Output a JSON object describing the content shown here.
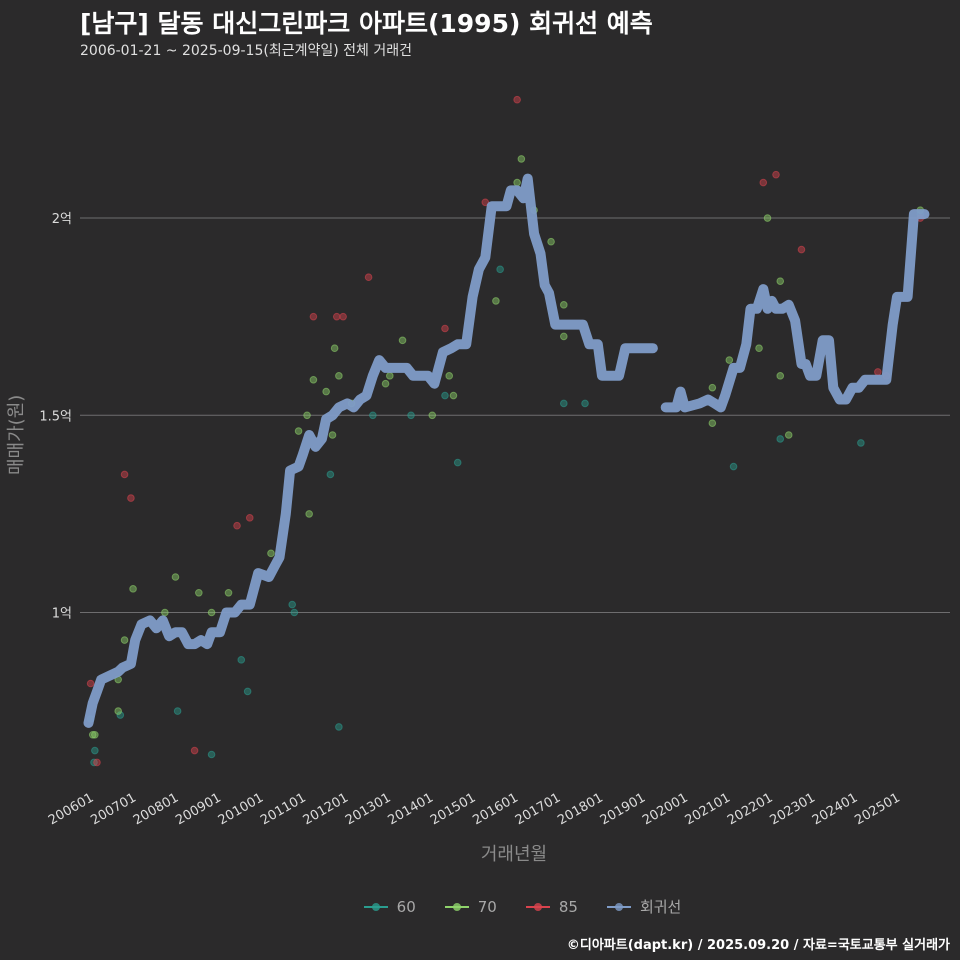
{
  "chart_data": {
    "type": "scatter+line",
    "title": "[남구] 달동 대신그린파크 아파트(1995) 회귀선 예측",
    "subtitle": "2006-01-21 ~ 2025-09-15(최근계약일) 전체 거래건",
    "xlabel": "거래년월",
    "ylabel": "매매가(원)",
    "caption": "©디아파트(dapt.kr) / 2025.09.20 / 자료=국토교통부 실거래가",
    "x_ticks": [
      "200601",
      "200701",
      "200801",
      "200901",
      "201001",
      "201101",
      "201201",
      "201301",
      "201401",
      "201501",
      "201601",
      "201701",
      "201801",
      "201901",
      "202001",
      "202101",
      "202201",
      "202301",
      "202401",
      "202501"
    ],
    "y_ticks": [
      {
        "value": 1.0,
        "label": "1억"
      },
      {
        "value": 1.5,
        "label": "1.5억"
      },
      {
        "value": 2.0,
        "label": "2억"
      }
    ],
    "x_range": [
      2005.8,
      2026.3
    ],
    "y_range": [
      0.55,
      2.35
    ],
    "legend": [
      {
        "name": "60",
        "color": "#2a9d8f"
      },
      {
        "name": "70",
        "color": "#8fd36b"
      },
      {
        "name": "85",
        "color": "#d9434e"
      },
      {
        "name": "회귀선",
        "color": "#7f9cc8"
      }
    ],
    "series": [
      {
        "name": "60",
        "color": "#2a9d8f",
        "points": [
          [
            2006.05,
            0.73
          ],
          [
            2006.15,
            0.65
          ],
          [
            2006.13,
            0.62
          ],
          [
            2006.75,
            0.74
          ],
          [
            2008.1,
            0.75
          ],
          [
            2008.9,
            0.64
          ],
          [
            2009.6,
            0.88
          ],
          [
            2009.75,
            0.8
          ],
          [
            2010.8,
            1.02
          ],
          [
            2010.85,
            1.0
          ],
          [
            2011.7,
            1.35
          ],
          [
            2011.9,
            0.71
          ],
          [
            2012.7,
            1.5
          ],
          [
            2013.6,
            1.5
          ],
          [
            2014.4,
            1.55
          ],
          [
            2014.7,
            1.38
          ],
          [
            2015.7,
            1.87
          ],
          [
            2017.2,
            1.53
          ],
          [
            2017.7,
            1.53
          ],
          [
            2021.2,
            1.37
          ],
          [
            2022.3,
            1.44
          ],
          [
            2024.2,
            1.43
          ],
          [
            2025.6,
            2.01
          ]
        ]
      },
      {
        "name": "70",
        "color": "#8fd36b",
        "points": [
          [
            2006.1,
            0.69
          ],
          [
            2006.15,
            0.69
          ],
          [
            2006.7,
            0.75
          ],
          [
            2006.7,
            0.83
          ],
          [
            2006.85,
            0.93
          ],
          [
            2007.05,
            1.06
          ],
          [
            2007.8,
            1.0
          ],
          [
            2008.05,
            1.09
          ],
          [
            2008.6,
            1.05
          ],
          [
            2008.9,
            1.0
          ],
          [
            2009.3,
            1.05
          ],
          [
            2010.3,
            1.15
          ],
          [
            2010.95,
            1.46
          ],
          [
            2011.15,
            1.5
          ],
          [
            2011.2,
            1.25
          ],
          [
            2011.3,
            1.59
          ],
          [
            2011.6,
            1.56
          ],
          [
            2011.75,
            1.45
          ],
          [
            2011.8,
            1.67
          ],
          [
            2011.9,
            1.6
          ],
          [
            2012.2,
            1.53
          ],
          [
            2013.0,
            1.58
          ],
          [
            2013.1,
            1.6
          ],
          [
            2013.4,
            1.69
          ],
          [
            2014.1,
            1.5
          ],
          [
            2014.5,
            1.6
          ],
          [
            2014.6,
            1.55
          ],
          [
            2015.6,
            1.79
          ],
          [
            2016.1,
            2.09
          ],
          [
            2016.2,
            2.15
          ],
          [
            2016.5,
            2.02
          ],
          [
            2016.9,
            1.94
          ],
          [
            2017.2,
            1.78
          ],
          [
            2017.2,
            1.7
          ],
          [
            2020.7,
            1.48
          ],
          [
            2020.7,
            1.57
          ],
          [
            2021.1,
            1.64
          ],
          [
            2021.8,
            1.67
          ],
          [
            2022.0,
            2.0
          ],
          [
            2022.3,
            1.84
          ],
          [
            2022.3,
            1.6
          ],
          [
            2022.5,
            1.45
          ],
          [
            2025.6,
            2.02
          ]
        ]
      },
      {
        "name": "85",
        "color": "#d9434e",
        "points": [
          [
            2006.05,
            0.82
          ],
          [
            2006.2,
            0.62
          ],
          [
            2006.85,
            1.35
          ],
          [
            2007.0,
            1.29
          ],
          [
            2008.5,
            0.65
          ],
          [
            2009.5,
            1.22
          ],
          [
            2009.8,
            1.24
          ],
          [
            2011.3,
            1.75
          ],
          [
            2011.85,
            1.75
          ],
          [
            2012.0,
            1.75
          ],
          [
            2012.6,
            1.85
          ],
          [
            2014.4,
            1.72
          ],
          [
            2015.35,
            2.04
          ],
          [
            2016.1,
            2.3
          ],
          [
            2021.9,
            2.09
          ],
          [
            2022.2,
            2.11
          ],
          [
            2022.8,
            1.92
          ],
          [
            2024.6,
            1.61
          ],
          [
            2024.8,
            1.6
          ],
          [
            2025.6,
            2.0
          ]
        ]
      },
      {
        "name": "회귀선",
        "color": "#7f9cc8",
        "segments": [
          [
            [
              2006.0,
              0.72
            ],
            [
              2006.1,
              0.77
            ],
            [
              2006.2,
              0.8
            ],
            [
              2006.3,
              0.83
            ],
            [
              2006.5,
              0.84
            ],
            [
              2006.7,
              0.85
            ],
            [
              2006.8,
              0.86
            ],
            [
              2007.0,
              0.87
            ],
            [
              2007.1,
              0.93
            ],
            [
              2007.25,
              0.97
            ],
            [
              2007.45,
              0.98
            ],
            [
              2007.6,
              0.96
            ],
            [
              2007.75,
              0.98
            ],
            [
              2007.9,
              0.94
            ],
            [
              2008.05,
              0.95
            ],
            [
              2008.2,
              0.95
            ],
            [
              2008.35,
              0.92
            ],
            [
              2008.5,
              0.92
            ],
            [
              2008.65,
              0.93
            ],
            [
              2008.8,
              0.92
            ],
            [
              2008.9,
              0.95
            ],
            [
              2009.1,
              0.95
            ],
            [
              2009.25,
              1.0
            ],
            [
              2009.45,
              1.0
            ],
            [
              2009.6,
              1.02
            ],
            [
              2009.8,
              1.02
            ],
            [
              2010.0,
              1.1
            ],
            [
              2010.25,
              1.09
            ],
            [
              2010.4,
              1.12
            ],
            [
              2010.5,
              1.14
            ],
            [
              2010.65,
              1.25
            ],
            [
              2010.75,
              1.36
            ],
            [
              2010.95,
              1.37
            ],
            [
              2011.05,
              1.4
            ],
            [
              2011.2,
              1.45
            ],
            [
              2011.35,
              1.42
            ],
            [
              2011.5,
              1.44
            ],
            [
              2011.6,
              1.49
            ],
            [
              2011.75,
              1.5
            ],
            [
              2011.9,
              1.52
            ],
            [
              2012.1,
              1.53
            ],
            [
              2012.25,
              1.52
            ],
            [
              2012.4,
              1.54
            ],
            [
              2012.55,
              1.55
            ],
            [
              2012.7,
              1.6
            ],
            [
              2012.85,
              1.64
            ],
            [
              2013.0,
              1.62
            ],
            [
              2013.3,
              1.62
            ],
            [
              2013.5,
              1.62
            ],
            [
              2013.65,
              1.6
            ],
            [
              2013.8,
              1.6
            ],
            [
              2014.0,
              1.6
            ],
            [
              2014.15,
              1.58
            ],
            [
              2014.35,
              1.66
            ],
            [
              2014.55,
              1.67
            ],
            [
              2014.7,
              1.68
            ],
            [
              2014.9,
              1.68
            ],
            [
              2015.05,
              1.8
            ],
            [
              2015.2,
              1.87
            ],
            [
              2015.35,
              1.9
            ],
            [
              2015.5,
              2.03
            ],
            [
              2015.85,
              2.03
            ],
            [
              2015.95,
              2.07
            ],
            [
              2016.1,
              2.07
            ],
            [
              2016.25,
              2.05
            ],
            [
              2016.35,
              2.1
            ],
            [
              2016.5,
              1.96
            ],
            [
              2016.65,
              1.91
            ],
            [
              2016.75,
              1.83
            ],
            [
              2016.85,
              1.81
            ],
            [
              2017.0,
              1.73
            ],
            [
              2017.25,
              1.73
            ],
            [
              2017.45,
              1.73
            ],
            [
              2017.65,
              1.73
            ],
            [
              2017.8,
              1.68
            ],
            [
              2018.0,
              1.68
            ],
            [
              2018.1,
              1.6
            ],
            [
              2018.3,
              1.6
            ],
            [
              2018.5,
              1.6
            ],
            [
              2018.65,
              1.67
            ],
            [
              2018.9,
              1.67
            ],
            [
              2019.1,
              1.67
            ],
            [
              2019.3,
              1.67
            ]
          ],
          [
            [
              2019.6,
              1.52
            ],
            [
              2019.85,
              1.52
            ],
            [
              2019.95,
              1.56
            ],
            [
              2020.05,
              1.52
            ],
            [
              2020.4,
              1.53
            ],
            [
              2020.6,
              1.54
            ],
            [
              2020.75,
              1.53
            ],
            [
              2020.9,
              1.52
            ],
            [
              2021.0,
              1.55
            ],
            [
              2021.2,
              1.62
            ],
            [
              2021.35,
              1.62
            ],
            [
              2021.5,
              1.68
            ],
            [
              2021.6,
              1.77
            ],
            [
              2021.75,
              1.77
            ],
            [
              2021.9,
              1.82
            ],
            [
              2022.0,
              1.77
            ],
            [
              2022.1,
              1.79
            ],
            [
              2022.2,
              1.77
            ],
            [
              2022.35,
              1.77
            ],
            [
              2022.5,
              1.78
            ],
            [
              2022.65,
              1.74
            ],
            [
              2022.8,
              1.63
            ],
            [
              2022.9,
              1.63
            ],
            [
              2023.0,
              1.6
            ],
            [
              2023.15,
              1.6
            ],
            [
              2023.3,
              1.69
            ],
            [
              2023.45,
              1.69
            ],
            [
              2023.55,
              1.57
            ],
            [
              2023.7,
              1.54
            ],
            [
              2023.85,
              1.54
            ],
            [
              2024.0,
              1.57
            ],
            [
              2024.15,
              1.57
            ],
            [
              2024.3,
              1.59
            ],
            [
              2024.6,
              1.59
            ],
            [
              2024.8,
              1.59
            ],
            [
              2024.95,
              1.73
            ],
            [
              2025.05,
              1.8
            ],
            [
              2025.3,
              1.8
            ],
            [
              2025.45,
              2.01
            ],
            [
              2025.7,
              2.01
            ]
          ]
        ]
      }
    ]
  }
}
